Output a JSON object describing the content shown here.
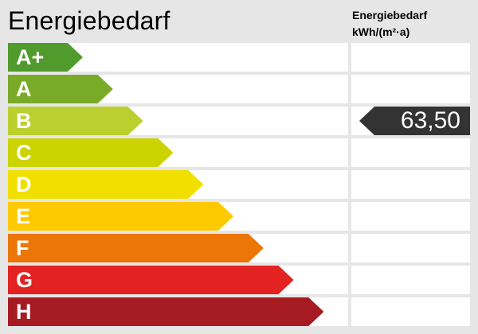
{
  "title": "Energiebedarf",
  "column_header": {
    "line1": "Energiebedarf",
    "line2": "kWh/(m²·a)"
  },
  "classes": [
    {
      "label": "A+",
      "color": "#509b2c"
    },
    {
      "label": "A",
      "color": "#79ab29"
    },
    {
      "label": "B",
      "color": "#bbcf2e"
    },
    {
      "label": "C",
      "color": "#cbd300"
    },
    {
      "label": "D",
      "color": "#f1df00"
    },
    {
      "label": "E",
      "color": "#fdc900"
    },
    {
      "label": "F",
      "color": "#ec7607"
    },
    {
      "label": "G",
      "color": "#e32321"
    },
    {
      "label": "H",
      "color": "#a61b21"
    }
  ],
  "indicator": {
    "class": "B",
    "value": "63,50",
    "color": "#333333"
  }
}
